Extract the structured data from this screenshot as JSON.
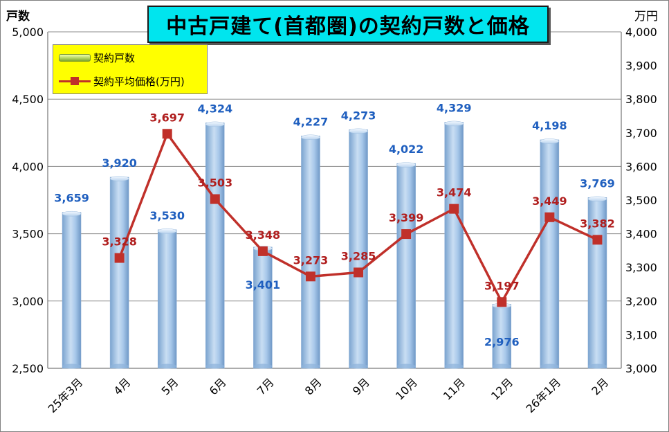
{
  "title": "中古戸建て(首都圏)の契約戸数と価格",
  "left_unit": "戸数",
  "right_unit": "万円",
  "legend": {
    "bar_label": "契約戸数",
    "line_label": "契約平均価格(万円)"
  },
  "colors": {
    "bar": "#9cc0e6",
    "bar_label": "#1f5fbf",
    "line": "#c0302a",
    "line_label": "#b01e1e",
    "title_bg": "#00e5ee",
    "legend_bg": "#ffff00"
  },
  "chart_data": {
    "type": "bar",
    "categories": [
      "25年3月",
      "4月",
      "5月",
      "6月",
      "7月",
      "8月",
      "9月",
      "10月",
      "11月",
      "12月",
      "26年1月",
      "2月"
    ],
    "series": [
      {
        "name": "契約戸数",
        "type": "bar",
        "axis": "left",
        "values": [
          3659,
          3920,
          3530,
          4324,
          3401,
          4227,
          4273,
          4022,
          4329,
          2976,
          4198,
          3769
        ]
      },
      {
        "name": "契約平均価格(万円)",
        "type": "line",
        "axis": "right",
        "values": [
          null,
          3328,
          3697,
          3503,
          3348,
          3273,
          3285,
          3399,
          3474,
          3197,
          3449,
          3382
        ]
      }
    ],
    "left_axis": {
      "min": 2500,
      "max": 5000,
      "step": 500
    },
    "right_axis": {
      "min": 3000,
      "max": 4000,
      "step": 100
    },
    "grid": true,
    "legend_position": "top-left"
  }
}
